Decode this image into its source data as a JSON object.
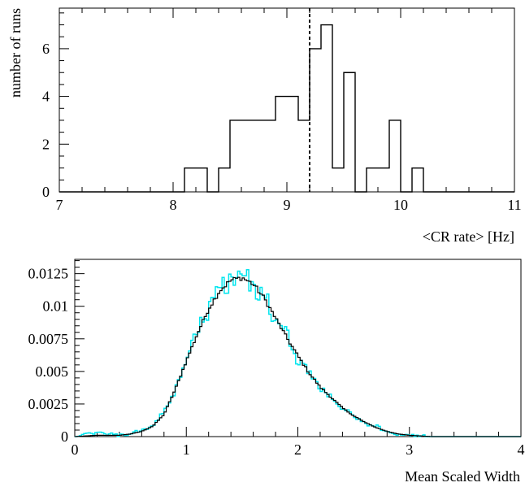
{
  "chart_data": [
    {
      "type": "histogram",
      "xlabel": "<CR rate> [Hz]",
      "ylabel": "number of runs",
      "xlim": [
        7,
        11
      ],
      "ylim": [
        0,
        7.7
      ],
      "bin_width": 0.1,
      "xticks": [
        "7",
        "8",
        "9",
        "10",
        "11"
      ],
      "yticks": [
        "0",
        "2",
        "4",
        "6"
      ],
      "bins": [
        [
          8.1,
          1
        ],
        [
          8.2,
          1
        ],
        [
          8.3,
          0
        ],
        [
          8.4,
          1
        ],
        [
          8.5,
          3
        ],
        [
          8.6,
          3
        ],
        [
          8.7,
          3
        ],
        [
          8.8,
          3
        ],
        [
          8.9,
          4
        ],
        [
          9.0,
          4
        ],
        [
          9.1,
          3
        ],
        [
          9.2,
          6
        ],
        [
          9.3,
          7
        ],
        [
          9.4,
          1
        ],
        [
          9.5,
          5
        ],
        [
          9.6,
          0
        ],
        [
          9.7,
          1
        ],
        [
          9.8,
          1
        ],
        [
          9.9,
          3
        ],
        [
          10.0,
          0
        ],
        [
          10.1,
          1
        ]
      ],
      "cut_line_x": 9.2,
      "colors": {
        "line": "#000000",
        "cut": "#000000"
      }
    },
    {
      "type": "histogram",
      "xlabel": "Mean Scaled Width",
      "ylabel": "",
      "xlim": [
        0,
        4
      ],
      "ylim": [
        0,
        0.0136
      ],
      "xticks": [
        "0",
        "1",
        "2",
        "3",
        "4"
      ],
      "yticks": [
        "0",
        "0.0025",
        "0.005",
        "0.0075",
        "0.01",
        "0.0125"
      ],
      "series": [
        {
          "style": "smooth",
          "color": "#000000",
          "points": [
            [
              0.0,
              0.0
            ],
            [
              0.2,
              0.0001
            ],
            [
              0.4,
              0.0001
            ],
            [
              0.5,
              0.0002
            ],
            [
              0.6,
              0.0004
            ],
            [
              0.7,
              0.0008
            ],
            [
              0.8,
              0.0017
            ],
            [
              0.9,
              0.0036
            ],
            [
              1.0,
              0.0058
            ],
            [
              1.1,
              0.0079
            ],
            [
              1.2,
              0.0098
            ],
            [
              1.3,
              0.0112
            ],
            [
              1.4,
              0.012
            ],
            [
              1.5,
              0.0122
            ],
            [
              1.6,
              0.0117
            ],
            [
              1.7,
              0.0106
            ],
            [
              1.8,
              0.0091
            ],
            [
              1.9,
              0.0076
            ],
            [
              2.0,
              0.0062
            ],
            [
              2.1,
              0.0049
            ],
            [
              2.2,
              0.0038
            ],
            [
              2.3,
              0.003
            ],
            [
              2.4,
              0.0022
            ],
            [
              2.5,
              0.0016
            ],
            [
              2.6,
              0.0011
            ],
            [
              2.7,
              0.0007
            ],
            [
              2.8,
              0.0004
            ],
            [
              2.9,
              0.0002
            ],
            [
              3.0,
              0.0001
            ],
            [
              3.2,
              0.0
            ],
            [
              4.0,
              0.0
            ]
          ]
        },
        {
          "style": "noisy",
          "color": "#00e5ee",
          "points": [
            [
              0.0,
              0.0
            ],
            [
              0.2,
              0.0003
            ],
            [
              0.4,
              0.0001
            ],
            [
              0.5,
              0.0002
            ],
            [
              0.6,
              0.0005
            ],
            [
              0.7,
              0.0008
            ],
            [
              0.8,
              0.0019
            ],
            [
              0.9,
              0.0034
            ],
            [
              1.0,
              0.0061
            ],
            [
              1.1,
              0.0082
            ],
            [
              1.2,
              0.0096
            ],
            [
              1.3,
              0.0116
            ],
            [
              1.4,
              0.0118
            ],
            [
              1.5,
              0.0126
            ],
            [
              1.6,
              0.0114
            ],
            [
              1.7,
              0.0109
            ],
            [
              1.8,
              0.0087
            ],
            [
              1.9,
              0.0079
            ],
            [
              2.0,
              0.0058
            ],
            [
              2.1,
              0.0051
            ],
            [
              2.2,
              0.0036
            ],
            [
              2.3,
              0.0032
            ],
            [
              2.4,
              0.002
            ],
            [
              2.5,
              0.0017
            ],
            [
              2.6,
              0.001
            ],
            [
              2.7,
              0.0008
            ],
            [
              2.8,
              0.0003
            ],
            [
              2.9,
              0.0002
            ],
            [
              3.0,
              0.0001
            ],
            [
              3.2,
              0.0
            ],
            [
              4.0,
              0.0
            ]
          ]
        }
      ]
    }
  ]
}
